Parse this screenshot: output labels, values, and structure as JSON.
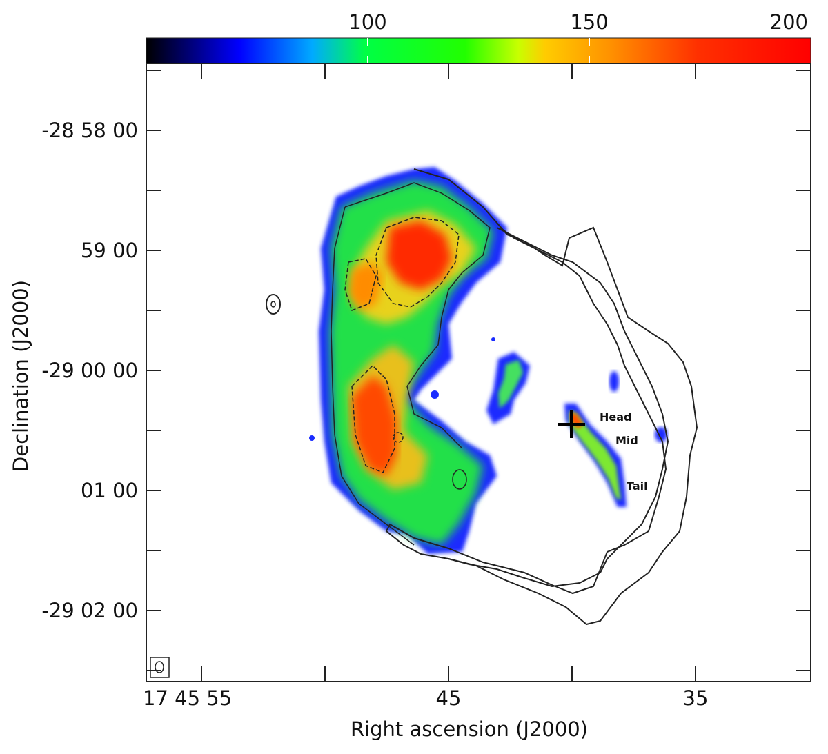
{
  "chart_data": {
    "type": "heatmap",
    "title": "",
    "colorbar": {
      "ticks": [
        "100",
        "150",
        "200"
      ],
      "tick_values": [
        100,
        150,
        200
      ],
      "range": [
        50,
        200
      ],
      "colormap": [
        "#000000",
        "#0000ff",
        "#00c8ff",
        "#00ff00",
        "#c8ff00",
        "#ffc800",
        "#ff8000",
        "#ff0000"
      ],
      "placement": "top"
    },
    "xlabel": "Right ascension (J2000)",
    "ylabel": "Declination (J2000)",
    "x_ticks": [
      {
        "label": "17 45 55",
        "ra_s": 55
      },
      {
        "label": "45",
        "ra_s": 45
      },
      {
        "label": "35",
        "ra_s": 35
      }
    ],
    "y_ticks": [
      {
        "label": "-28 58 00",
        "dec_arcmin": -28.0
      },
      {
        "label": "59 00",
        "dec_arcmin": -29.0
      },
      {
        "label": "-29 00 00",
        "dec_arcmin": -30.0
      },
      {
        "label": "01 00",
        "dec_arcmin": -31.0
      },
      {
        "label": "-29 02 00",
        "dec_arcmin": -32.0
      }
    ],
    "annotations": [
      "Head",
      "Mid",
      "Tail"
    ],
    "grid": false
  }
}
